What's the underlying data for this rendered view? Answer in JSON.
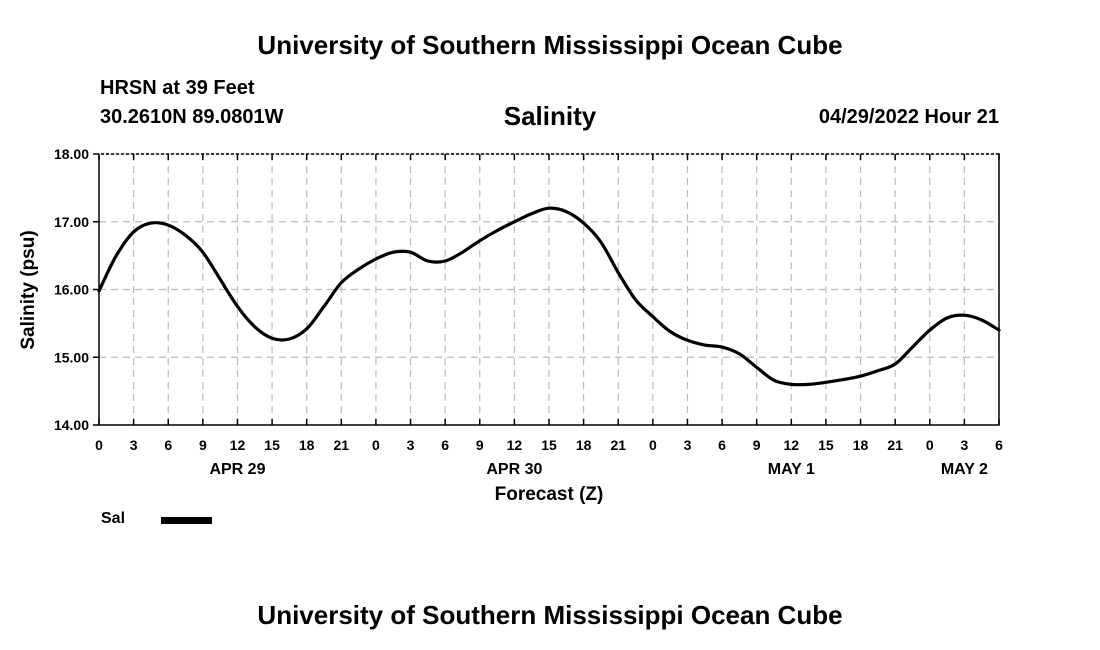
{
  "header": {
    "main_title": "University of Southern Mississippi Ocean Cube",
    "station": "HRSN at 39 Feet",
    "coordinates": "30.2610N  89.0801W",
    "datetime": "04/29/2022 Hour 21"
  },
  "footer": {
    "title": "University of Southern Mississippi Ocean Cube"
  },
  "legend": {
    "label": "Sal"
  },
  "colors": {
    "line": "#000000",
    "grid": "#bbbbbb",
    "background": "#ffffff"
  },
  "chart_data": {
    "type": "line",
    "title": "Salinity",
    "xlabel": "Forecast (Z)",
    "ylabel": "Salinity (psu)",
    "xlim": [
      0,
      78
    ],
    "ylim": [
      14,
      18
    ],
    "y_ticks": [
      "14.00",
      "15.00",
      "16.00",
      "17.00",
      "18.00"
    ],
    "y_tick_values": [
      14,
      15,
      16,
      17,
      18
    ],
    "x_tick_hours": [
      0,
      3,
      6,
      9,
      12,
      15,
      18,
      21,
      24,
      27,
      30,
      33,
      36,
      39,
      42,
      45,
      48,
      51,
      54,
      57,
      60,
      63,
      66,
      69,
      72,
      75,
      78
    ],
    "x_tick_labels": [
      "0",
      "3",
      "6",
      "9",
      "12",
      "15",
      "18",
      "21",
      "0",
      "3",
      "6",
      "9",
      "12",
      "15",
      "18",
      "21",
      "0",
      "3",
      "6",
      "9",
      "12",
      "15",
      "18",
      "21",
      "0",
      "3",
      "6"
    ],
    "day_labels": [
      {
        "label": "APR 29",
        "hour": 12
      },
      {
        "label": "APR 30",
        "hour": 36
      },
      {
        "label": "MAY 1",
        "hour": 60
      },
      {
        "label": "MAY 2",
        "hour": 75
      }
    ],
    "grid": true,
    "series": [
      {
        "name": "Sal",
        "x": [
          0,
          1.5,
          3,
          4.5,
          6,
          7.5,
          9,
          10.5,
          12,
          13.5,
          15,
          16.5,
          18,
          19.5,
          21,
          22.5,
          24,
          25.5,
          27,
          28.5,
          30,
          31.5,
          33,
          34.5,
          36,
          37.5,
          39,
          40.5,
          42,
          43.5,
          45,
          46.5,
          48,
          49.5,
          51,
          52.5,
          54,
          55.5,
          57,
          58.5,
          60,
          61.5,
          63,
          64.5,
          66,
          67.5,
          69,
          70.5,
          72,
          73.5,
          75,
          76.5,
          78
        ],
        "values": [
          15.98,
          16.5,
          16.85,
          16.98,
          16.95,
          16.8,
          16.55,
          16.15,
          15.75,
          15.45,
          15.28,
          15.27,
          15.42,
          15.75,
          16.1,
          16.3,
          16.45,
          16.55,
          16.55,
          16.42,
          16.42,
          16.55,
          16.72,
          16.87,
          17.0,
          17.12,
          17.2,
          17.15,
          16.98,
          16.7,
          16.25,
          15.85,
          15.6,
          15.38,
          15.25,
          15.18,
          15.15,
          15.05,
          14.85,
          14.66,
          14.6,
          14.6,
          14.63,
          14.67,
          14.72,
          14.8,
          14.9,
          15.15,
          15.4,
          15.58,
          15.62,
          15.55,
          15.4
        ]
      }
    ]
  }
}
